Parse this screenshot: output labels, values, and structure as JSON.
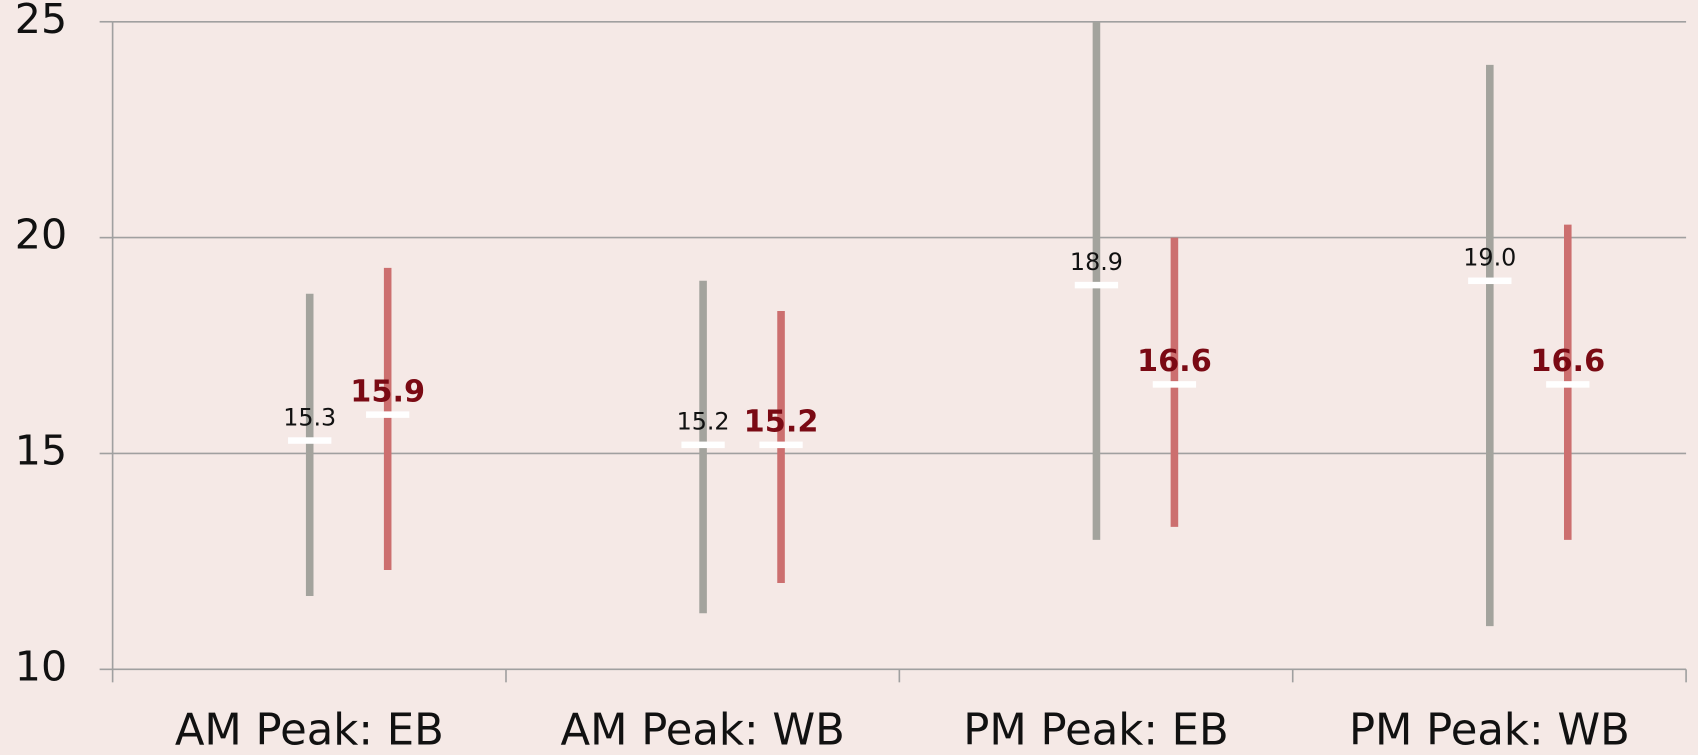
{
  "chart_data": {
    "type": "hilo",
    "categories": [
      "AM Peak: EB",
      "AM Peak: WB",
      "PM Peak: EB",
      "PM Peak: WB"
    ],
    "series": [
      {
        "color": "#a3a39d",
        "label_color": "#111111",
        "label_bold": false,
        "high": [
          18.7,
          19.0,
          25.0,
          24.0
        ],
        "low": [
          11.7,
          11.3,
          13.0,
          11.0
        ],
        "values": [
          15.3,
          15.2,
          18.9,
          19.0
        ],
        "value_labels": [
          "15.3",
          "15.2",
          "18.9",
          "19.0"
        ]
      },
      {
        "color": "#cc6f6f",
        "label_color": "#7a0a14",
        "label_bold": true,
        "high": [
          19.3,
          18.3,
          20.0,
          20.3
        ],
        "low": [
          12.3,
          12.0,
          13.3,
          13.0
        ],
        "values": [
          15.9,
          15.2,
          16.6,
          16.6
        ],
        "value_labels": [
          "15.9",
          "15.2",
          "16.6",
          "16.6"
        ]
      }
    ],
    "ylim": [
      10,
      25
    ],
    "yticks": [
      10,
      15,
      20,
      25
    ],
    "grid": true
  }
}
